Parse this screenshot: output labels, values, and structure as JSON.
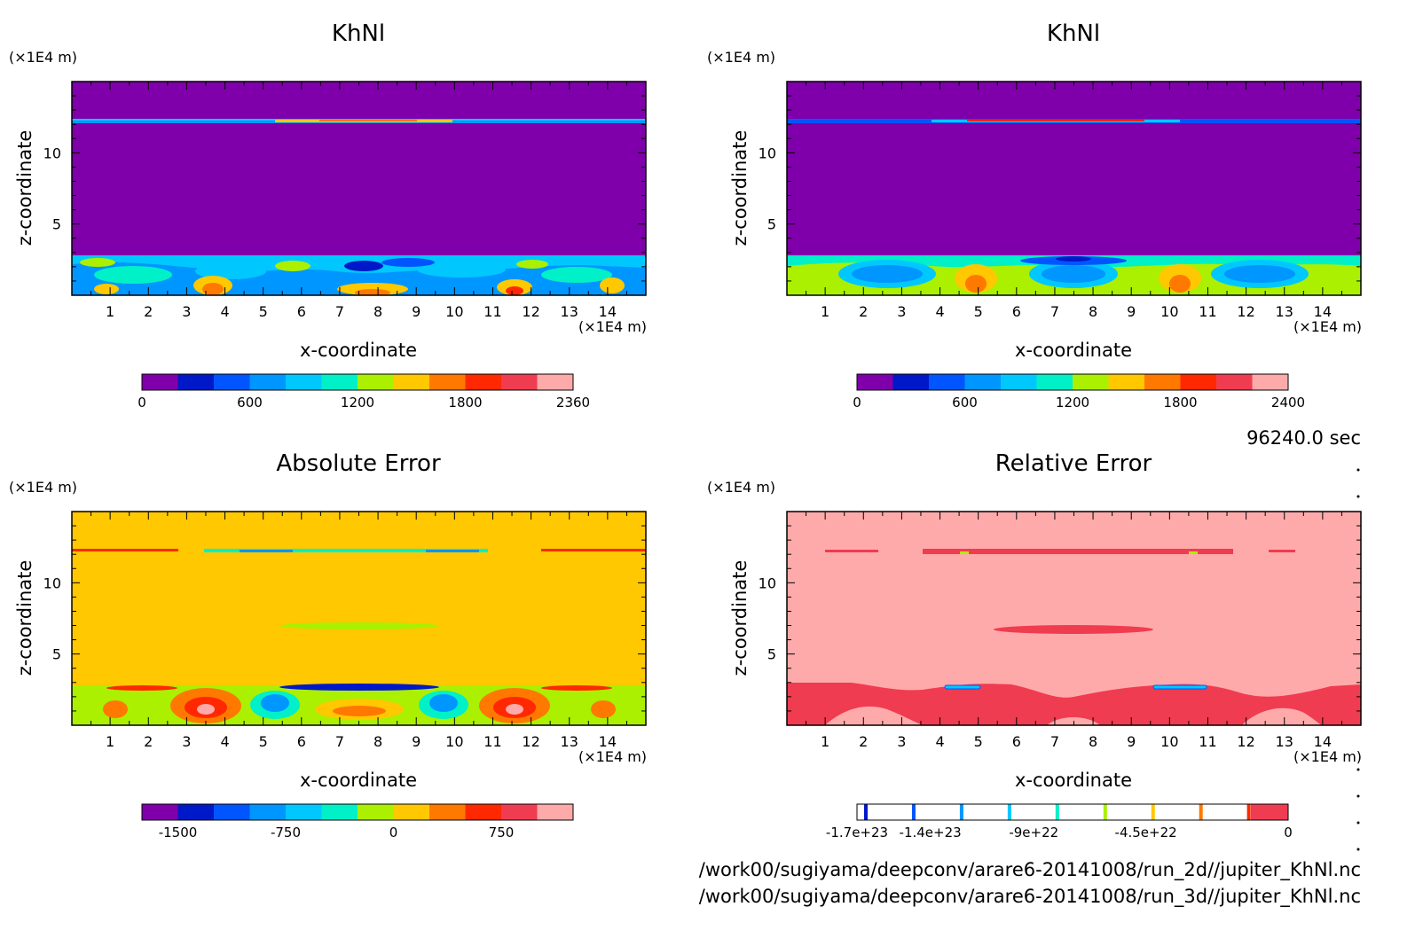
{
  "units": {
    "axis_unit": "(×1E4 m)"
  },
  "info": {
    "time": "96240.0 sec",
    "files": [
      "/work00/sugiyama/deepconv/arare6-20141008/run_2d//jupiter_KhNl.nc",
      "/work00/sugiyama/deepconv/arare6-20141008/run_3d//jupiter_KhNl.nc"
    ]
  },
  "chart_data": [
    {
      "type": "heatmap",
      "title": "KhNl",
      "xlabel": "x-coordinate",
      "ylabel": "z-coordinate",
      "xlim": [
        0,
        15
      ],
      "ylim": [
        0,
        15
      ],
      "x_ticks": [
        1,
        2,
        3,
        4,
        5,
        6,
        7,
        8,
        9,
        10,
        11,
        12,
        13,
        14
      ],
      "y_ticks": [
        5,
        10
      ],
      "background_color": "#7f00aa",
      "colorbar": {
        "levels": [
          0,
          200,
          400,
          600,
          800,
          1000,
          1200,
          1400,
          1600,
          1800,
          2000,
          2200,
          2360
        ],
        "colors": [
          "#7f00aa",
          "#0019c8",
          "#0055ff",
          "#0096ff",
          "#00c8ff",
          "#00f0c8",
          "#aaf000",
          "#ffc800",
          "#ff7800",
          "#ff2800",
          "#f03c50",
          "#ffaaaa"
        ],
        "tick_labels": [
          "0",
          "600",
          "1200",
          "1800",
          "2360"
        ]
      }
    },
    {
      "type": "heatmap",
      "title": "KhNl",
      "xlabel": "x-coordinate",
      "ylabel": "z-coordinate",
      "xlim": [
        0,
        15
      ],
      "ylim": [
        0,
        15
      ],
      "x_ticks": [
        1,
        2,
        3,
        4,
        5,
        6,
        7,
        8,
        9,
        10,
        11,
        12,
        13,
        14
      ],
      "y_ticks": [
        5,
        10
      ],
      "background_color": "#7f00aa",
      "colorbar": {
        "levels": [
          0,
          200,
          400,
          600,
          800,
          1000,
          1200,
          1400,
          1600,
          1800,
          2000,
          2200,
          2400
        ],
        "colors": [
          "#7f00aa",
          "#0019c8",
          "#0055ff",
          "#0096ff",
          "#00c8ff",
          "#00f0c8",
          "#aaf000",
          "#ffc800",
          "#ff7800",
          "#ff2800",
          "#f03c50",
          "#ffaaaa"
        ],
        "tick_labels": [
          "0",
          "600",
          "1200",
          "1800",
          "2400"
        ]
      }
    },
    {
      "type": "heatmap",
      "title": "Absolute Error",
      "xlabel": "x-coordinate",
      "ylabel": "z-coordinate",
      "xlim": [
        0,
        15
      ],
      "ylim": [
        0,
        15
      ],
      "x_ticks": [
        1,
        2,
        3,
        4,
        5,
        6,
        7,
        8,
        9,
        10,
        11,
        12,
        13,
        14
      ],
      "y_ticks": [
        5,
        10
      ],
      "background_color": "#ffc800",
      "colorbar": {
        "levels": [
          -1750,
          -1500,
          -1250,
          -1000,
          -750,
          -500,
          -250,
          0,
          250,
          500,
          750,
          1000,
          1150
        ],
        "colors": [
          "#7f00aa",
          "#0019c8",
          "#0055ff",
          "#0096ff",
          "#00c8ff",
          "#00f0c8",
          "#aaf000",
          "#ffc800",
          "#ff7800",
          "#ff2800",
          "#f03c50",
          "#ffaaaa"
        ],
        "tick_labels": [
          "-1500",
          "-750",
          "0",
          "750"
        ]
      }
    },
    {
      "type": "heatmap",
      "title": "Relative Error",
      "xlabel": "x-coordinate",
      "ylabel": "z-coordinate",
      "xlim": [
        0,
        15
      ],
      "ylim": [
        0,
        15
      ],
      "x_ticks": [
        1,
        2,
        3,
        4,
        5,
        6,
        7,
        8,
        9,
        10,
        11,
        12,
        13,
        14
      ],
      "y_ticks": [
        5,
        10
      ],
      "background_color": "#ffaaaa",
      "colorbar": {
        "levels": [
          -1.8e+23,
          -1.7e+23,
          -1.4e+23,
          -9e+22,
          -4.5e+22,
          0
        ],
        "colors": [
          "#ffffff",
          "#0019c8",
          "#0055ff",
          "#0096ff",
          "#00c8ff",
          "#00f0c8",
          "#aaf000",
          "#ffc800",
          "#ff7800",
          "#ff2800",
          "#ffffff",
          "#f03c50"
        ],
        "tick_labels": [
          "-1.7e+23",
          "-1.4e+23",
          "-9e+22",
          "-4.5e+22",
          "0"
        ]
      }
    }
  ]
}
